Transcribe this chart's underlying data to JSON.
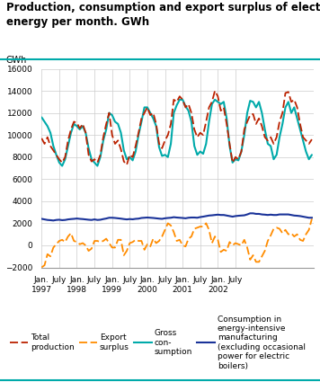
{
  "title": "Production, consumption and export surplus of electric\nenergy per month. GWh",
  "ylabel": "GWh",
  "ylim": [
    -2000,
    16000
  ],
  "yticks": [
    -2000,
    0,
    2000,
    4000,
    6000,
    8000,
    10000,
    12000,
    14000,
    16000
  ],
  "bg_color": "#ffffff",
  "title_color": "#000000",
  "teal_line_color": "#00AAAA",
  "red_dash_color": "#BB2200",
  "orange_dash_color": "#FF8C00",
  "blue_line_color": "#1A3399",
  "total_production": [
    9700,
    9200,
    9800,
    9000,
    8600,
    8200,
    7800,
    7500,
    8000,
    9500,
    10500,
    11200,
    11100,
    10600,
    11000,
    10200,
    8200,
    7600,
    7800,
    7500,
    8200,
    9800,
    11000,
    12000,
    10000,
    9200,
    9500,
    8700,
    7600,
    7300,
    8200,
    8000,
    9000,
    10200,
    11500,
    12000,
    12500,
    11800,
    12000,
    11000,
    9200,
    8800,
    9500,
    10000,
    11000,
    13200,
    13000,
    13500,
    13200,
    12500,
    12800,
    12000,
    10500,
    9800,
    10200,
    10000,
    11200,
    12500,
    13000,
    14000,
    13500,
    12200,
    12500,
    11000,
    9200,
    7500,
    8000,
    7800,
    8500,
    10500,
    11200,
    11800,
    11900,
    11000,
    11500,
    10800,
    9800,
    9500,
    9800,
    9200,
    9800,
    11200,
    12000,
    13800,
    13900,
    13000,
    13200,
    12500,
    11000,
    9800,
    9500,
    9200,
    9600
  ],
  "gross_consumption": [
    11600,
    11200,
    10800,
    10200,
    9000,
    8200,
    7500,
    7200,
    7800,
    9000,
    10200,
    11000,
    10800,
    10500,
    10800,
    10200,
    8800,
    7800,
    7500,
    7200,
    8000,
    9500,
    10500,
    12000,
    11800,
    11200,
    11000,
    10200,
    8600,
    7800,
    8000,
    7700,
    8500,
    10000,
    11200,
    12500,
    12500,
    12000,
    11500,
    10800,
    8900,
    8100,
    8200,
    8000,
    9200,
    12000,
    12700,
    13200,
    13200,
    12600,
    12200,
    11200,
    9000,
    8200,
    8500,
    8300,
    9200,
    11200,
    12800,
    13200,
    13000,
    12800,
    13000,
    11500,
    9000,
    7500,
    7800,
    7700,
    8500,
    10000,
    12000,
    13100,
    13000,
    12500,
    13000,
    12000,
    10500,
    9200,
    9000,
    7800,
    8200,
    9800,
    11000,
    12500,
    13000,
    12000,
    12500,
    11500,
    10500,
    9500,
    8500,
    7800,
    8200
  ],
  "export_surplus": [
    -2000,
    -1800,
    -800,
    -1000,
    -200,
    100,
    400,
    500,
    300,
    800,
    1100,
    400,
    300,
    100,
    200,
    0,
    -500,
    -300,
    400,
    400,
    300,
    400,
    600,
    200,
    -200,
    -200,
    500,
    500,
    -900,
    -500,
    200,
    300,
    500,
    400,
    400,
    -400,
    100,
    -100,
    600,
    200,
    400,
    800,
    1400,
    2000,
    1800,
    1200,
    400,
    500,
    0,
    -100,
    600,
    800,
    1500,
    1600,
    1700,
    1700,
    2000,
    1400,
    200,
    800,
    500,
    -600,
    -400,
    -500,
    300,
    0,
    200,
    100,
    0,
    500,
    -200,
    -1300,
    -900,
    -1500,
    -1500,
    -1000,
    -500,
    400,
    900,
    1500,
    1600,
    1500,
    1100,
    1400,
    1000,
    1100,
    800,
    1000,
    500,
    400,
    1000,
    1400,
    2400
  ],
  "consumption_intensive": [
    2400,
    2350,
    2300,
    2280,
    2250,
    2300,
    2320,
    2280,
    2300,
    2350,
    2380,
    2400,
    2430,
    2400,
    2380,
    2350,
    2320,
    2300,
    2350,
    2300,
    2320,
    2380,
    2430,
    2500,
    2500,
    2480,
    2450,
    2420,
    2380,
    2350,
    2380,
    2360,
    2400,
    2420,
    2480,
    2500,
    2520,
    2500,
    2480,
    2450,
    2420,
    2400,
    2450,
    2480,
    2500,
    2550,
    2520,
    2500,
    2480,
    2450,
    2500,
    2520,
    2520,
    2500,
    2560,
    2600,
    2650,
    2700,
    2720,
    2750,
    2780,
    2750,
    2750,
    2700,
    2650,
    2600,
    2650,
    2680,
    2700,
    2720,
    2800,
    2900,
    2900,
    2850,
    2850,
    2800,
    2780,
    2750,
    2780,
    2750,
    2750,
    2800,
    2800,
    2800,
    2800,
    2750,
    2700,
    2680,
    2650,
    2600,
    2550,
    2500,
    2500
  ]
}
